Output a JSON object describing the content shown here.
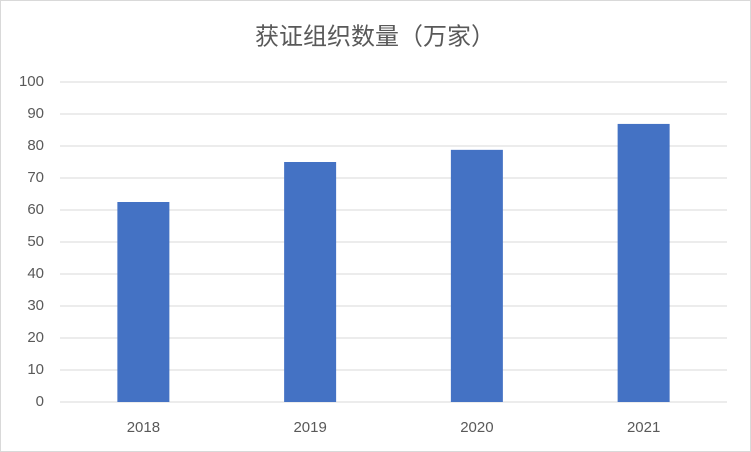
{
  "chart_data": {
    "type": "bar",
    "title": "获证组织数量（万家）",
    "categories": [
      "2018",
      "2019",
      "2020",
      "2021"
    ],
    "values": [
      62.5,
      75,
      78.8,
      86.9
    ],
    "color": "#4472c4",
    "ylim": [
      0,
      100
    ],
    "yticks": [
      0,
      10,
      20,
      30,
      40,
      50,
      60,
      70,
      80,
      90,
      100
    ],
    "grid": true
  }
}
